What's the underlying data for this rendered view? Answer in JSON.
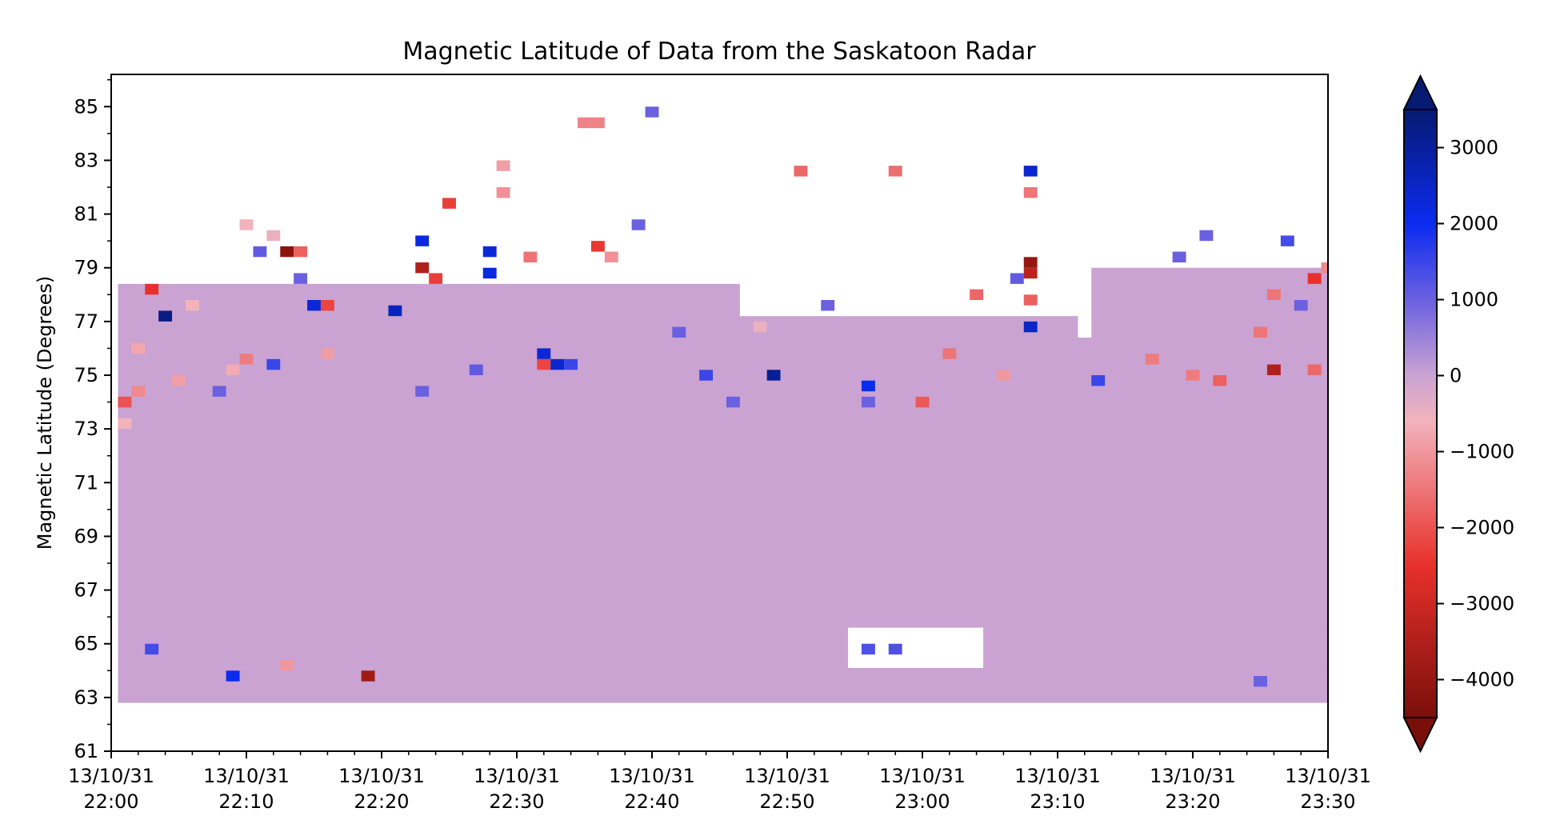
{
  "chart_data": {
    "type": "heatmap",
    "title": "Magnetic Latitude of Data from the Saskatoon Radar",
    "xlabel": "",
    "ylabel": "Magnetic Latitude (Degrees)",
    "xlim": [
      "13/10/31 22:00",
      "13/10/31 23:30"
    ],
    "ylim": [
      61,
      86.2
    ],
    "x_ticks": [
      {
        "date": "13/10/31",
        "time": "22:00"
      },
      {
        "date": "13/10/31",
        "time": "22:10"
      },
      {
        "date": "13/10/31",
        "time": "22:20"
      },
      {
        "date": "13/10/31",
        "time": "22:30"
      },
      {
        "date": "13/10/31",
        "time": "22:40"
      },
      {
        "date": "13/10/31",
        "time": "22:50"
      },
      {
        "date": "13/10/31",
        "time": "23:00"
      },
      {
        "date": "13/10/31",
        "time": "23:10"
      },
      {
        "date": "13/10/31",
        "time": "23:20"
      },
      {
        "date": "13/10/31",
        "time": "23:30"
      }
    ],
    "y_ticks": [
      61,
      63,
      65,
      67,
      69,
      71,
      73,
      75,
      77,
      79,
      81,
      83,
      85
    ],
    "grid": false,
    "colorbar": {
      "range": [
        -4500,
        3500
      ],
      "ticks": [
        3000,
        2000,
        1000,
        0,
        -1000,
        -2000,
        -3000,
        -4000
      ],
      "tick_labels": [
        "3000",
        "2000",
        "1000",
        "0",
        "−1000",
        "−2000",
        "−3000",
        "−4000"
      ],
      "extend": "both",
      "colors": [
        {
          "value": -4500,
          "color": "#7a0f0a"
        },
        {
          "value": -2500,
          "color": "#e8302b"
        },
        {
          "value": -600,
          "color": "#f2b3bc"
        },
        {
          "value": 0,
          "color": "#caa3d3"
        },
        {
          "value": 1000,
          "color": "#6a60e0"
        },
        {
          "value": 2000,
          "color": "#0b2bf0"
        },
        {
          "value": 3500,
          "color": "#061a72"
        }
      ]
    },
    "background_value": 0,
    "background_regions": [
      {
        "t": [
          "22:01",
          "23:30"
        ],
        "lat": [
          65.6,
          73.6
        ]
      },
      {
        "t": [
          "22:01",
          "22:46"
        ],
        "lat": [
          73.6,
          78.4
        ]
      },
      {
        "t": [
          "22:46",
          "23:11"
        ],
        "lat": [
          73.6,
          77.2
        ]
      },
      {
        "t": [
          "23:11",
          "23:30"
        ],
        "lat": [
          73.6,
          76.4
        ]
      },
      {
        "t": [
          "23:13",
          "23:30"
        ],
        "lat": [
          76.4,
          79.0
        ]
      },
      {
        "t": [
          "22:01",
          "23:30"
        ],
        "lat": [
          62.8,
          64.1
        ]
      },
      {
        "t": [
          "22:01",
          "22:54"
        ],
        "lat": [
          64.1,
          65.6
        ]
      },
      {
        "t": [
          "23:05",
          "23:30"
        ],
        "lat": [
          64.1,
          65.6
        ]
      }
    ],
    "bins": [
      {
        "t": "22:01",
        "lat": 74.0,
        "v": -2000
      },
      {
        "t": "22:01",
        "lat": 73.2,
        "v": -600
      },
      {
        "t": "22:02",
        "lat": 76.0,
        "v": -800
      },
      {
        "t": "22:02",
        "lat": 74.4,
        "v": -1200
      },
      {
        "t": "22:03",
        "lat": 78.2,
        "v": -2500
      },
      {
        "t": "22:03",
        "lat": 64.8,
        "v": 1400
      },
      {
        "t": "22:04",
        "lat": 77.2,
        "v": 3300
      },
      {
        "t": "22:05",
        "lat": 74.8,
        "v": -900
      },
      {
        "t": "22:06",
        "lat": 77.6,
        "v": -600
      },
      {
        "t": "22:08",
        "lat": 74.4,
        "v": 1000
      },
      {
        "t": "22:09",
        "lat": 75.2,
        "v": -700
      },
      {
        "t": "22:10",
        "lat": 75.6,
        "v": -1400
      },
      {
        "t": "22:10",
        "lat": 80.6,
        "v": -600
      },
      {
        "t": "22:09",
        "lat": 63.8,
        "v": 2000
      },
      {
        "t": "22:11",
        "lat": 79.6,
        "v": 1100
      },
      {
        "t": "22:12",
        "lat": 75.4,
        "v": 1500
      },
      {
        "t": "22:12",
        "lat": 80.2,
        "v": -500
      },
      {
        "t": "22:13",
        "lat": 79.6,
        "v": -4200
      },
      {
        "t": "22:13",
        "lat": 64.2,
        "v": -1000
      },
      {
        "t": "22:14",
        "lat": 79.6,
        "v": -1800
      },
      {
        "t": "22:14",
        "lat": 78.6,
        "v": 1000
      },
      {
        "t": "22:15",
        "lat": 77.6,
        "v": 2300
      },
      {
        "t": "22:16",
        "lat": 77.6,
        "v": -2200
      },
      {
        "t": "22:16",
        "lat": 75.8,
        "v": -900
      },
      {
        "t": "22:19",
        "lat": 63.8,
        "v": -3800
      },
      {
        "t": "22:21",
        "lat": 77.4,
        "v": 2600
      },
      {
        "t": "22:23",
        "lat": 79.0,
        "v": -3500
      },
      {
        "t": "22:23",
        "lat": 80.0,
        "v": 2200
      },
      {
        "t": "22:23",
        "lat": 74.4,
        "v": 1000
      },
      {
        "t": "22:24",
        "lat": 78.6,
        "v": -2300
      },
      {
        "t": "22:25",
        "lat": 81.4,
        "v": -2300
      },
      {
        "t": "22:27",
        "lat": 75.2,
        "v": 1100
      },
      {
        "t": "22:28",
        "lat": 79.6,
        "v": 2300
      },
      {
        "t": "22:28",
        "lat": 78.8,
        "v": 2200
      },
      {
        "t": "22:29",
        "lat": 82.8,
        "v": -900
      },
      {
        "t": "22:29",
        "lat": 81.8,
        "v": -1100
      },
      {
        "t": "22:31",
        "lat": 79.4,
        "v": -1500
      },
      {
        "t": "22:32",
        "lat": 75.8,
        "v": 2300
      },
      {
        "t": "22:32",
        "lat": 75.4,
        "v": -2200
      },
      {
        "t": "22:33",
        "lat": 75.4,
        "v": 2400
      },
      {
        "t": "22:34",
        "lat": 75.4,
        "v": 1500
      },
      {
        "t": "22:35",
        "lat": 84.4,
        "v": -1300
      },
      {
        "t": "22:36",
        "lat": 79.8,
        "v": -2400
      },
      {
        "t": "22:36",
        "lat": 84.4,
        "v": -1300
      },
      {
        "t": "22:37",
        "lat": 79.4,
        "v": -1100
      },
      {
        "t": "22:39",
        "lat": 80.6,
        "v": 1000
      },
      {
        "t": "22:40",
        "lat": 84.8,
        "v": 1000
      },
      {
        "t": "22:42",
        "lat": 76.6,
        "v": 1000
      },
      {
        "t": "22:44",
        "lat": 75.0,
        "v": 1500
      },
      {
        "t": "22:46",
        "lat": 74.0,
        "v": 1000
      },
      {
        "t": "22:48",
        "lat": 76.8,
        "v": -500
      },
      {
        "t": "22:49",
        "lat": 75.0,
        "v": 3100
      },
      {
        "t": "22:51",
        "lat": 82.6,
        "v": -1700
      },
      {
        "t": "22:53",
        "lat": 77.6,
        "v": 1000
      },
      {
        "t": "22:56",
        "lat": 74.6,
        "v": 2000
      },
      {
        "t": "22:56",
        "lat": 74.0,
        "v": 1000
      },
      {
        "t": "22:58",
        "lat": 82.6,
        "v": -1600
      },
      {
        "t": "22:56",
        "lat": 64.8,
        "v": 1300
      },
      {
        "t": "22:58",
        "lat": 64.8,
        "v": 1300
      },
      {
        "t": "23:00",
        "lat": 74.0,
        "v": -1900
      },
      {
        "t": "23:02",
        "lat": 75.8,
        "v": -1500
      },
      {
        "t": "23:04",
        "lat": 78.0,
        "v": -1700
      },
      {
        "t": "23:06",
        "lat": 75.0,
        "v": -1000
      },
      {
        "t": "23:07",
        "lat": 78.6,
        "v": 1100
      },
      {
        "t": "23:08",
        "lat": 77.8,
        "v": -1800
      },
      {
        "t": "23:08",
        "lat": 82.6,
        "v": 2400
      },
      {
        "t": "23:08",
        "lat": 81.8,
        "v": -1500
      },
      {
        "t": "23:08",
        "lat": 79.2,
        "v": -4000
      },
      {
        "t": "23:08",
        "lat": 78.8,
        "v": -3300
      },
      {
        "t": "23:08",
        "lat": 76.8,
        "v": 2500
      },
      {
        "t": "23:13",
        "lat": 74.8,
        "v": 1500
      },
      {
        "t": "23:17",
        "lat": 75.6,
        "v": -1400
      },
      {
        "t": "23:19",
        "lat": 79.4,
        "v": 1000
      },
      {
        "t": "23:20",
        "lat": 75.0,
        "v": -1400
      },
      {
        "t": "23:21",
        "lat": 80.2,
        "v": 1000
      },
      {
        "t": "23:22",
        "lat": 74.8,
        "v": -1800
      },
      {
        "t": "23:25",
        "lat": 76.6,
        "v": -1500
      },
      {
        "t": "23:26",
        "lat": 75.2,
        "v": -3500
      },
      {
        "t": "23:26",
        "lat": 78.0,
        "v": -1500
      },
      {
        "t": "23:27",
        "lat": 80.0,
        "v": 1400
      },
      {
        "t": "23:28",
        "lat": 77.6,
        "v": 1000
      },
      {
        "t": "23:29",
        "lat": 78.6,
        "v": -2500
      },
      {
        "t": "23:29",
        "lat": 75.2,
        "v": -1700
      },
      {
        "t": "23:30",
        "lat": 79.0,
        "v": -1200
      },
      {
        "t": "23:25",
        "lat": 63.6,
        "v": 1000
      }
    ]
  }
}
